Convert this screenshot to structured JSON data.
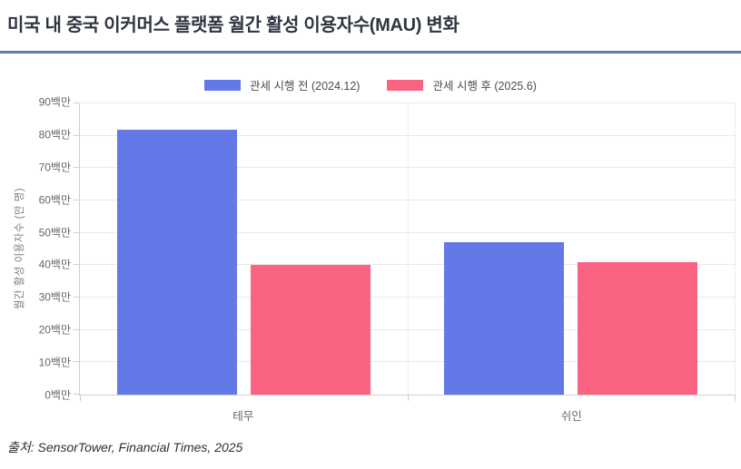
{
  "header": {
    "title": "미국 내 중국 이커머스 플랫폼 월간 활성 이용자수(MAU) 변화"
  },
  "footer": {
    "source": "출처: SensorTower, Financial Times, 2025"
  },
  "colors": {
    "before_bar": "#6379e8",
    "after_bar": "#fb6382",
    "title_underline": "#5d7ab5",
    "grid": "#e9e9e9",
    "axis": "#cfcfcf",
    "tick_text": "#666666"
  },
  "chart_data": {
    "type": "bar",
    "categories": [
      "테무",
      "쉬인"
    ],
    "series": [
      {
        "name": "관세 시행 전 (2024.12)",
        "color": "#6379e8",
        "values": [
          82,
          47
        ]
      },
      {
        "name": "관세 시행 후 (2025.6)",
        "color": "#fb6382",
        "values": [
          40,
          41
        ]
      }
    ],
    "title": "미국 내 중국 이커머스 플랫폼 월간 활성 이용자수(MAU) 변화",
    "xlabel": "",
    "ylabel": "월간 활성 이용자수 (만 명)",
    "ylim": [
      0,
      90
    ],
    "ytick_step": 10,
    "yticks": [
      "0백만",
      "10백만",
      "20백만",
      "30백만",
      "40백만",
      "50백만",
      "60백만",
      "70백만",
      "80백만",
      "90백만"
    ],
    "grid": "horizontal-on, vertical-category-boundary",
    "legend_position": "top-center"
  }
}
